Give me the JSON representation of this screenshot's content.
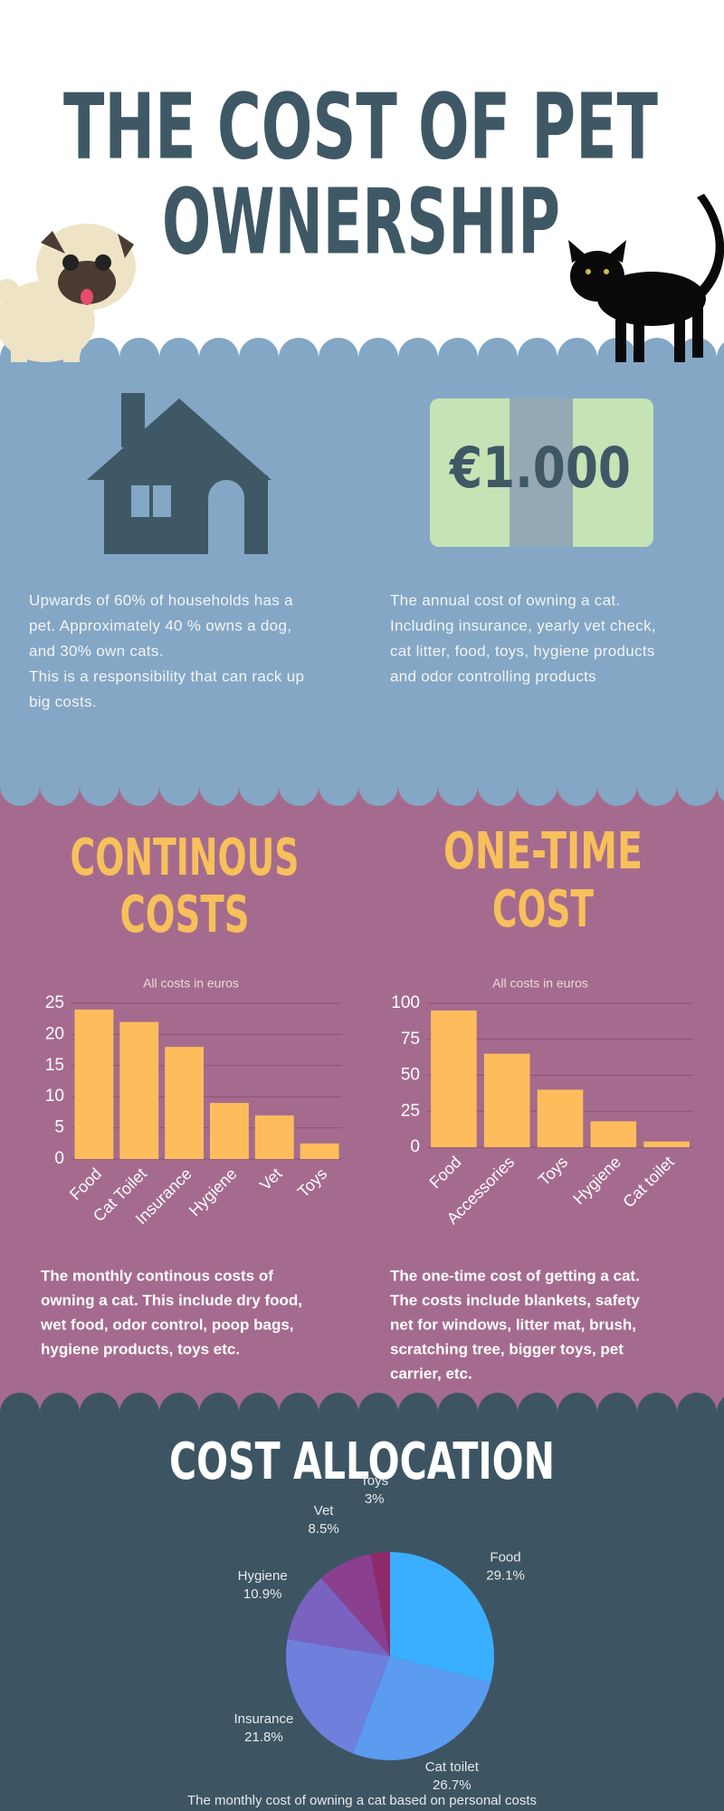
{
  "header": {
    "title_lines": [
      "THE COST OF PET",
      "OWNERSHIP"
    ]
  },
  "intro": {
    "price": "€1.000",
    "left_text": [
      "Upwards of 60% of households has a",
      "pet. Approximately 40 % owns a dog,",
      "and 30% own cats.",
      "This is a responsibility that can rack up",
      "big costs."
    ],
    "right_text": [
      "The annual cost of owning a cat.",
      "Including insurance, yearly vet check,",
      "cat litter, food, toys, hygiene products",
      "and odor controlling products"
    ]
  },
  "chart_data": [
    {
      "type": "bar",
      "title_lines": [
        "CONTINOUS",
        "COSTS"
      ],
      "subtitle": "All costs in euros",
      "categories": [
        "Food",
        "Cat Toilet",
        "Insurance",
        "Hygiene",
        "Vet",
        "Toys"
      ],
      "values": [
        24,
        22,
        18,
        9,
        7,
        2.5
      ],
      "color": "#fdbd5c",
      "ylim": [
        0,
        25
      ],
      "yticks": [
        0,
        5,
        10,
        15,
        20,
        25
      ],
      "grid": true,
      "caption_lines": [
        "The monthly continous costs of",
        "owning a cat. This include dry food,",
        "wet food, odor control, poop bags,",
        "hygiene products, toys etc."
      ]
    },
    {
      "type": "bar",
      "title_lines": [
        "ONE-TIME",
        "COST"
      ],
      "subtitle": "All costs in euros",
      "categories": [
        "Food",
        "Accessories",
        "Toys",
        "Hygiene",
        "Cat toilet"
      ],
      "values": [
        95,
        65,
        40,
        18,
        4
      ],
      "color": "#fdbd5c",
      "ylim": [
        0,
        100
      ],
      "yticks": [
        0,
        25,
        50,
        75,
        100
      ],
      "grid": true,
      "caption_lines": [
        "The one-time cost of getting a cat.",
        "The costs include blankets, safety",
        "net for windows, litter mat, brush,",
        "scratching tree, bigger toys, pet",
        "carrier, etc."
      ]
    },
    {
      "type": "pie",
      "title": "COST ALLOCATION",
      "categories": [
        "Food",
        "Cat toilet",
        "Insurance",
        "Hygiene",
        "Vet",
        "Toys"
      ],
      "values": [
        29.1,
        26.7,
        21.8,
        10.9,
        8.5,
        3
      ],
      "value_labels": [
        "29.1%",
        "26.7%",
        "21.8%",
        "10.9%",
        "8.5%",
        "3%"
      ],
      "colors": [
        "#3aaeff",
        "#5b9bf0",
        "#6f7fdc",
        "#7a62c0",
        "#8a3f8f",
        "#8e2a6a"
      ],
      "caption": "The monthly cost of owning a cat based on personal costs"
    }
  ]
}
